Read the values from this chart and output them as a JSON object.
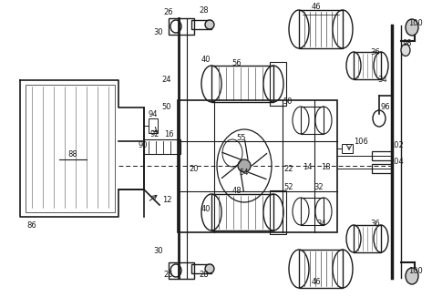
{
  "background_color": "#ffffff",
  "line_color": "#1a1a1a",
  "figsize": [
    4.74,
    3.26
  ],
  "dpi": 100
}
